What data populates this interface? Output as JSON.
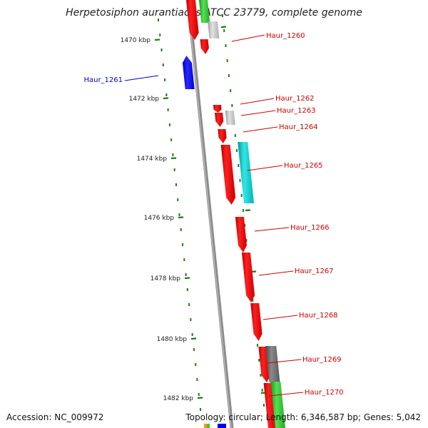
{
  "title": "Herpetosiphon aurantiacus ATCC 23779, complete genome",
  "footer": {
    "accession": "Accession: NC_009972",
    "topology": "Topology: circular; Length: 6,346,587 bp; Genes: 5,042"
  },
  "colors": {
    "red": "#ee0000",
    "grey": "#c8c8c8",
    "darkgrey": "#707070",
    "blue": "#0000ee",
    "cyan": "#00cccc",
    "green": "#33cc33",
    "scale": "#1e7a1e",
    "backbone": "#8c8c8c",
    "label_red": "#cc0000",
    "label_blue": "#0000cc"
  },
  "scale_labels": [
    "1470 kbp",
    "1472 kbp",
    "1474 kbp",
    "1476 kbp",
    "1478 kbp",
    "1480 kbp",
    "1482 kbp"
  ],
  "gene_labels": [
    {
      "id": "Haur_1260",
      "color": "red"
    },
    {
      "id": "Haur_1261",
      "color": "blue"
    },
    {
      "id": "Haur_1262",
      "color": "red"
    },
    {
      "id": "Haur_1263",
      "color": "red"
    },
    {
      "id": "Haur_1264",
      "color": "red"
    },
    {
      "id": "Haur_1265",
      "color": "red"
    },
    {
      "id": "Haur_1266",
      "color": "red"
    },
    {
      "id": "Haur_1267",
      "color": "red"
    },
    {
      "id": "Haur_1268",
      "color": "red"
    },
    {
      "id": "Haur_1269",
      "color": "red"
    },
    {
      "id": "Haur_1270",
      "color": "red"
    }
  ]
}
